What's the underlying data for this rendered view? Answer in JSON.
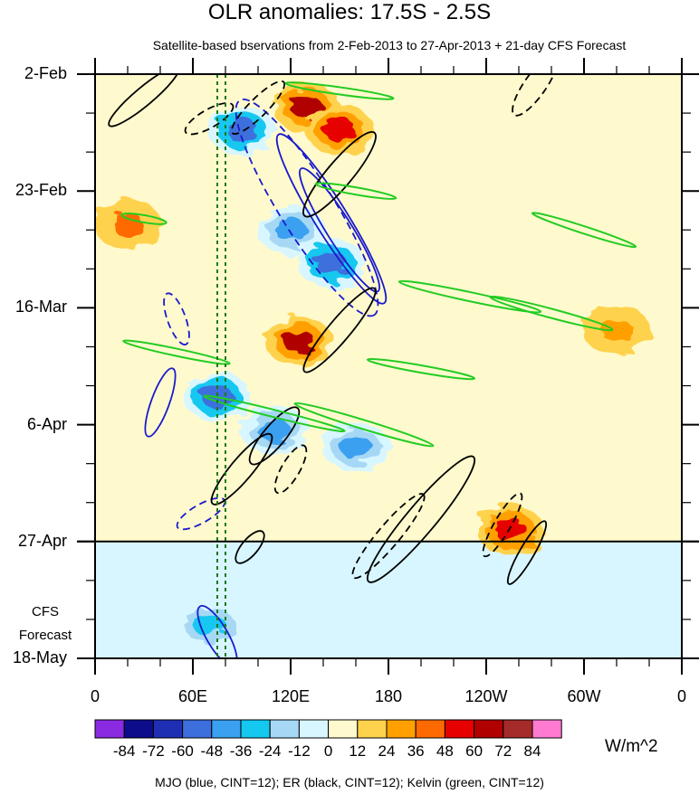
{
  "title": "OLR anomalies: 17.5S - 2.5S",
  "subtitle": "Satellite-based bservations from 2-Feb-2013 to 27-Apr-2013 + 21-day CFS Forecast",
  "footer": "MJO (blue, CINT=12); ER (black, CINT=12); Kelvin (green, CINT=12)",
  "forecast_label_line1": "CFS",
  "forecast_label_line2": "Forecast",
  "chart_data": {
    "type": "heatmap",
    "x_ticks": [
      "0",
      "60E",
      "120E",
      "180",
      "120W",
      "60W",
      "0"
    ],
    "x_range_deg": [
      0,
      360
    ],
    "y_ticks": [
      "2-Feb",
      "23-Feb",
      "16-Mar",
      "6-Apr",
      "27-Apr",
      "18-May"
    ],
    "y_range": [
      "2-Feb",
      "18-May"
    ],
    "observation_end": "27-Apr",
    "colorbar": {
      "units": "W/m^2",
      "labels": [
        "-84",
        "-72",
        "-60",
        "-48",
        "-36",
        "-24",
        "-12",
        "0",
        "12",
        "24",
        "36",
        "48",
        "60",
        "72",
        "84"
      ],
      "colors": [
        "#8a2be2",
        "#0d0d8c",
        "#1e2fb4",
        "#3d6fdc",
        "#3aa0f0",
        "#14c8f0",
        "#a6d8f5",
        "#d8f6ff",
        "#fffacd",
        "#ffd24d",
        "#ffa000",
        "#ff6a00",
        "#e60000",
        "#b00000",
        "#a52a2a",
        "#ff7ad0"
      ]
    },
    "overlays": {
      "MJO": "blue",
      "ER": "black",
      "Kelvin": "green"
    },
    "anomaly_features": [
      {
        "lon": 130,
        "date": "8-Feb",
        "value": 60
      },
      {
        "lon": 150,
        "date": "12-Feb",
        "value": 48
      },
      {
        "lon": 90,
        "date": "12-Feb",
        "value": -60
      },
      {
        "lon": 120,
        "date": "2-Mar",
        "value": -48
      },
      {
        "lon": 145,
        "date": "8-Mar",
        "value": -60
      },
      {
        "lon": 125,
        "date": "22-Mar",
        "value": 60
      },
      {
        "lon": 75,
        "date": "1-Apr",
        "value": -60
      },
      {
        "lon": 110,
        "date": "7-Apr",
        "value": -48
      },
      {
        "lon": 160,
        "date": "10-Apr",
        "value": -48
      },
      {
        "lon": 255,
        "date": "25-Apr",
        "value": 48
      },
      {
        "lon": 70,
        "date": "12-May",
        "value": -36
      },
      {
        "lon": 20,
        "date": "1-Mar",
        "value": 36
      },
      {
        "lon": 320,
        "date": "20-Mar",
        "value": 24
      }
    ]
  }
}
